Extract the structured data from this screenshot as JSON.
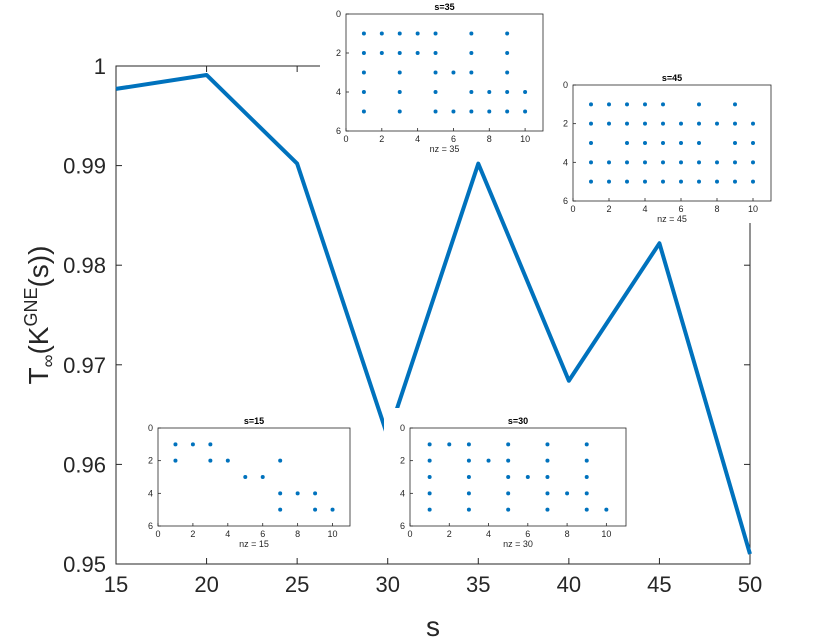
{
  "chart_data": {
    "type": "line",
    "xlabel": "s",
    "ylabel_main": "T",
    "ylabel_sub": "∞",
    "ylabel_paren": "(K",
    "ylabel_sup": "GNE",
    "ylabel_end": "(s))",
    "xlim": [
      15,
      50
    ],
    "ylim": [
      0.95,
      1.0
    ],
    "xticks": [
      15,
      20,
      25,
      30,
      35,
      40,
      45,
      50
    ],
    "yticks": [
      0.95,
      0.96,
      0.97,
      0.98,
      0.99,
      1
    ],
    "ytick_labels": [
      "0.95",
      "0.96",
      "0.97",
      "0.98",
      "0.99",
      "1"
    ],
    "line_color": "#0072BD",
    "x": [
      15,
      20,
      25,
      30,
      35,
      40,
      45,
      50
    ],
    "y": [
      0.9977,
      0.9991,
      0.9902,
      0.9628,
      0.9902,
      0.9684,
      0.9822,
      0.951
    ],
    "insets": [
      {
        "title": "s=15",
        "xlabel": "nz = 15",
        "points": [
          [
            1,
            1
          ],
          [
            2,
            1
          ],
          [
            3,
            1
          ],
          [
            1,
            2
          ],
          [
            3,
            2
          ],
          [
            4,
            2
          ],
          [
            5,
            3
          ],
          [
            6,
            3
          ],
          [
            7,
            2
          ],
          [
            7,
            4
          ],
          [
            8,
            4
          ],
          [
            9,
            4
          ],
          [
            7,
            5
          ],
          [
            9,
            5
          ],
          [
            10,
            5
          ]
        ]
      },
      {
        "title": "s=30",
        "xlabel": "nz = 30",
        "points": [
          [
            1,
            1
          ],
          [
            2,
            1
          ],
          [
            3,
            1
          ],
          [
            5,
            1
          ],
          [
            7,
            1
          ],
          [
            9,
            1
          ],
          [
            1,
            2
          ],
          [
            3,
            2
          ],
          [
            4,
            2
          ],
          [
            5,
            2
          ],
          [
            7,
            2
          ],
          [
            9,
            2
          ],
          [
            1,
            3
          ],
          [
            3,
            3
          ],
          [
            5,
            3
          ],
          [
            6,
            3
          ],
          [
            7,
            3
          ],
          [
            9,
            3
          ],
          [
            1,
            4
          ],
          [
            3,
            4
          ],
          [
            5,
            4
          ],
          [
            7,
            4
          ],
          [
            8,
            4
          ],
          [
            9,
            4
          ],
          [
            1,
            5
          ],
          [
            3,
            5
          ],
          [
            5,
            5
          ],
          [
            7,
            5
          ],
          [
            9,
            5
          ],
          [
            10,
            5
          ]
        ]
      },
      {
        "title": "s=35",
        "xlabel": "nz = 35",
        "points": [
          [
            1,
            1
          ],
          [
            2,
            1
          ],
          [
            3,
            1
          ],
          [
            4,
            1
          ],
          [
            5,
            1
          ],
          [
            7,
            1
          ],
          [
            9,
            1
          ],
          [
            1,
            2
          ],
          [
            2,
            2
          ],
          [
            3,
            2
          ],
          [
            4,
            2
          ],
          [
            5,
            2
          ],
          [
            7,
            2
          ],
          [
            9,
            2
          ],
          [
            1,
            3
          ],
          [
            3,
            3
          ],
          [
            5,
            3
          ],
          [
            6,
            3
          ],
          [
            7,
            3
          ],
          [
            9,
            3
          ],
          [
            1,
            4
          ],
          [
            3,
            4
          ],
          [
            5,
            4
          ],
          [
            7,
            4
          ],
          [
            8,
            4
          ],
          [
            9,
            4
          ],
          [
            10,
            4
          ],
          [
            1,
            5
          ],
          [
            3,
            5
          ],
          [
            5,
            5
          ],
          [
            6,
            5
          ],
          [
            7,
            5
          ],
          [
            8,
            5
          ],
          [
            9,
            5
          ],
          [
            10,
            5
          ]
        ]
      },
      {
        "title": "s=45",
        "xlabel": "nz = 45",
        "points": [
          [
            1,
            1
          ],
          [
            2,
            1
          ],
          [
            3,
            1
          ],
          [
            4,
            1
          ],
          [
            5,
            1
          ],
          [
            7,
            1
          ],
          [
            9,
            1
          ],
          [
            1,
            2
          ],
          [
            2,
            2
          ],
          [
            3,
            2
          ],
          [
            4,
            2
          ],
          [
            5,
            2
          ],
          [
            6,
            2
          ],
          [
            7,
            2
          ],
          [
            8,
            2
          ],
          [
            9,
            2
          ],
          [
            10,
            2
          ],
          [
            1,
            3
          ],
          [
            3,
            3
          ],
          [
            4,
            3
          ],
          [
            5,
            3
          ],
          [
            6,
            3
          ],
          [
            7,
            3
          ],
          [
            9,
            3
          ],
          [
            10,
            3
          ],
          [
            1,
            4
          ],
          [
            2,
            4
          ],
          [
            3,
            4
          ],
          [
            4,
            4
          ],
          [
            5,
            4
          ],
          [
            6,
            4
          ],
          [
            7,
            4
          ],
          [
            8,
            4
          ],
          [
            9,
            4
          ],
          [
            10,
            4
          ],
          [
            1,
            5
          ],
          [
            2,
            5
          ],
          [
            3,
            5
          ],
          [
            4,
            5
          ],
          [
            5,
            5
          ],
          [
            6,
            5
          ],
          [
            7,
            5
          ],
          [
            8,
            5
          ],
          [
            9,
            5
          ],
          [
            10,
            5
          ]
        ]
      }
    ],
    "inset_xticks": [
      0,
      2,
      4,
      6,
      8,
      10
    ],
    "inset_yticks": [
      0,
      2,
      4,
      6
    ],
    "inset_xlim": [
      0,
      11
    ],
    "inset_ylim": [
      0,
      6
    ]
  }
}
